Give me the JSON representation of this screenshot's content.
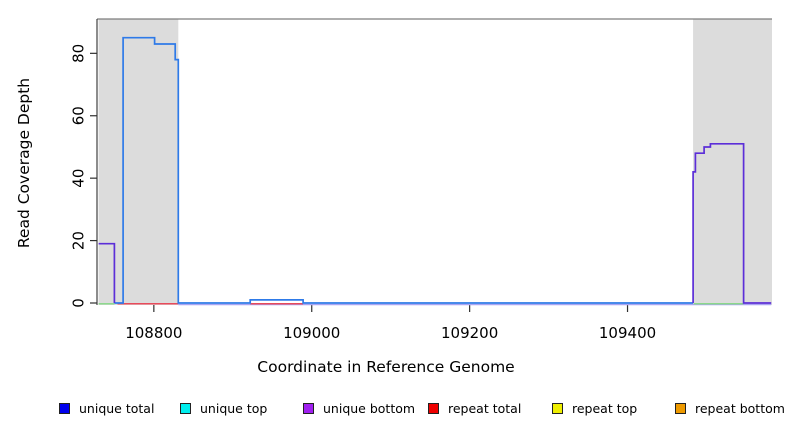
{
  "figure": {
    "kind": "R-style read coverage plot",
    "background": "#ffffff",
    "highlight_color": "#dcdcdc"
  },
  "chart_data": {
    "type": "line",
    "title": "",
    "xlabel": "Coordinate in Reference Genome",
    "ylabel": "Read Coverage Depth",
    "xlim": [
      108728,
      109583
    ],
    "ylim": [
      0,
      91
    ],
    "x_ticks": [
      108800,
      109000,
      109200,
      109400
    ],
    "y_ticks": [
      0,
      20,
      40,
      60,
      80
    ],
    "grid": false,
    "highlight_regions": [
      {
        "name": "shaded-region-left",
        "x0": 108730,
        "x1": 108831,
        "color": "#dcdcdc"
      },
      {
        "name": "shaded-region-right",
        "x0": 109483,
        "x1": 109583,
        "color": "#dcdcdc"
      }
    ],
    "series": [
      {
        "name": "baseline-shadow-unique-bottom-at-zero",
        "color": "#aaa4f2",
        "width": 1.3,
        "dy": 1.6,
        "segments": [
          [
            [
              108831,
              0
            ],
            [
              109582,
              0
            ]
          ]
        ]
      },
      {
        "name": "zero-coverage-overlap-green",
        "color": "#8ad88a",
        "width": 1.5,
        "dy": 0.8,
        "segments": [
          [
            [
              108730,
              0
            ],
            [
              108750,
              0
            ]
          ],
          [
            [
              109484,
              0
            ],
            [
              109547,
              0
            ]
          ]
        ]
      },
      {
        "name": "repeat-total-at-zero-red",
        "color": "#e84a5a",
        "width": 1.5,
        "dy": 0.8,
        "segments": [
          [
            [
              108754,
              0
            ],
            [
              108831,
              0
            ]
          ],
          [
            [
              108922,
              0
            ],
            [
              108989,
              0
            ]
          ]
        ]
      },
      {
        "name": "unique-total-plus-top-strand-coverage",
        "color": "#2e7ae8",
        "width": 1.7,
        "segments": [
          [
            [
              108750,
              0
            ],
            [
              108761,
              0
            ],
            [
              108761,
              85
            ],
            [
              108801,
              85
            ],
            [
              108801,
              83
            ],
            [
              108827,
              83
            ],
            [
              108827,
              78
            ],
            [
              108831,
              78
            ],
            [
              108831,
              0
            ],
            [
              108922,
              0
            ],
            [
              108922,
              1
            ],
            [
              108989,
              1
            ],
            [
              108989,
              0
            ],
            [
              109483,
              0
            ]
          ]
        ]
      },
      {
        "name": "unique-total-plus-bottom-strand-coverage",
        "color": "#5c2ed8",
        "width": 1.7,
        "segments": [
          [
            [
              108730,
              19
            ],
            [
              108750,
              19
            ],
            [
              108750,
              0
            ]
          ],
          [
            [
              109483,
              0
            ],
            [
              109483,
              42
            ],
            [
              109486,
              42
            ],
            [
              109486,
              48
            ],
            [
              109497,
              48
            ],
            [
              109497,
              50
            ],
            [
              109505,
              50
            ],
            [
              109505,
              51
            ],
            [
              109547,
              51
            ],
            [
              109547,
              0
            ],
            [
              109582,
              0
            ]
          ]
        ]
      }
    ],
    "legend": {
      "position": "bottom",
      "items": [
        {
          "label": "unique total",
          "color": "#0000ee"
        },
        {
          "label": "unique top",
          "color": "#00eeee"
        },
        {
          "label": "unique bottom",
          "color": "#a020f0"
        },
        {
          "label": "repeat total",
          "color": "#ee0000"
        },
        {
          "label": "repeat top",
          "color": "#eeee00"
        },
        {
          "label": "repeat bottom",
          "color": "#ee9a00"
        }
      ]
    }
  }
}
